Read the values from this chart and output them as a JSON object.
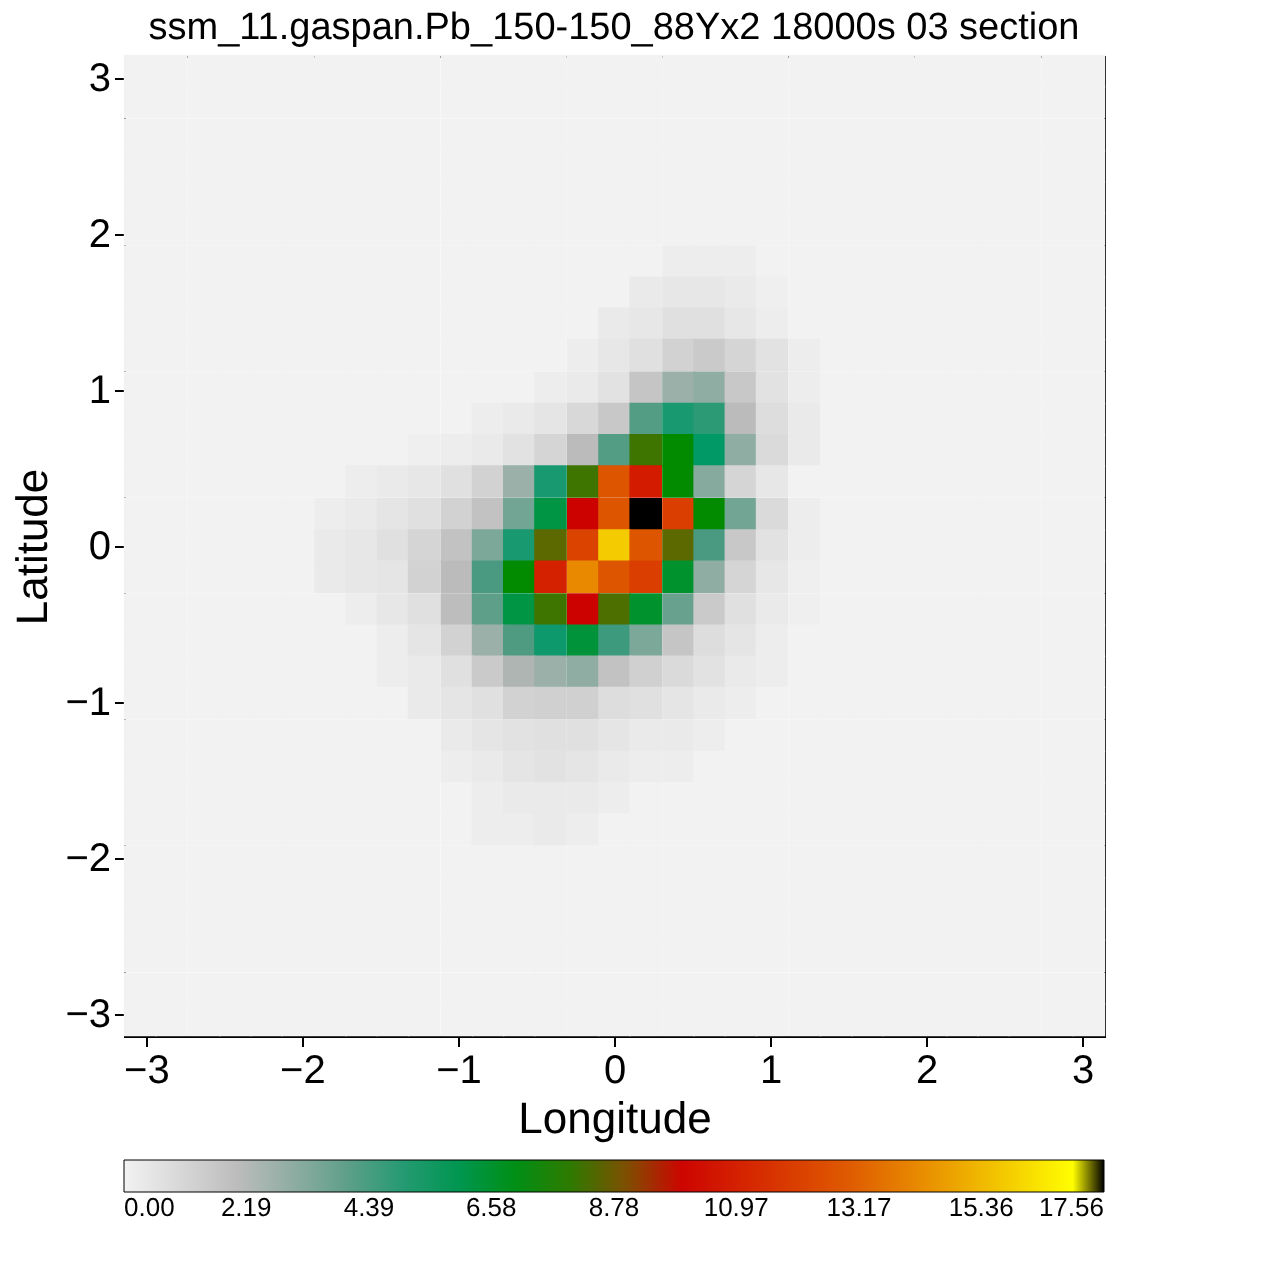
{
  "chart_data": {
    "type": "heatmap",
    "title": "ssm_11.gaspan.Pb_150-150_88Yx2 18000s 03 section",
    "xlabel": "Longitude",
    "ylabel": "Latitude",
    "xlim": [
      -3.14,
      3.14
    ],
    "ylim": [
      -3.14,
      3.14
    ],
    "xticks": [
      -3,
      -2,
      -1,
      0,
      1,
      2,
      3
    ],
    "yticks": [
      -3,
      -2,
      -1,
      0,
      1,
      2,
      3
    ],
    "clim": [
      0,
      17.56
    ],
    "cticks": [
      {
        "value": 0,
        "label": "0.00"
      },
      2.19,
      4.39,
      6.58,
      8.78,
      10.97,
      13.17,
      15.36,
      17.56
    ],
    "x": [
      -3.04,
      -2.84,
      -2.63,
      -2.43,
      -2.23,
      -2.03,
      -1.82,
      -1.62,
      -1.42,
      -1.22,
      -1.01,
      -0.81,
      -0.61,
      -0.41,
      -0.2,
      0,
      0.2,
      0.41,
      0.61,
      0.81,
      1.01,
      1.22,
      1.42,
      1.62,
      1.82,
      2.03,
      2.23,
      2.43,
      2.63,
      2.84,
      3.04
    ],
    "y": [
      3.04,
      2.84,
      2.63,
      2.43,
      2.23,
      2.03,
      1.82,
      1.62,
      1.42,
      1.22,
      1.01,
      0.81,
      0.61,
      0.41,
      0.2,
      0,
      -0.2,
      -0.41,
      -0.61,
      -0.81,
      -1.01,
      -1.22,
      -1.42,
      -1.62,
      -1.82,
      -2.03,
      -2.23,
      -2.43,
      -2.63,
      -2.84,
      -3.04
    ],
    "cells": [
      [
        0,
        0,
        0,
        0,
        0,
        0,
        0,
        0,
        0,
        0,
        0,
        0,
        0,
        0,
        0,
        0,
        0,
        0,
        0,
        0,
        0,
        0,
        0,
        0,
        0,
        0,
        0,
        0,
        0,
        0,
        0
      ],
      [
        0,
        0,
        0,
        0,
        0,
        0,
        0,
        0,
        0,
        0,
        0,
        0,
        0,
        0,
        0,
        0,
        0,
        0,
        0,
        0,
        0,
        0,
        0,
        0,
        0,
        0,
        0,
        0,
        0,
        0,
        0
      ],
      [
        0,
        0,
        0,
        0,
        0,
        0,
        0,
        0,
        0,
        0,
        0,
        0,
        0,
        0,
        0,
        0,
        0,
        0,
        0,
        0,
        0,
        0,
        0,
        0,
        0,
        0,
        0,
        0,
        0,
        0,
        0
      ],
      [
        0,
        0,
        0,
        0,
        0,
        0,
        0,
        0,
        0,
        0,
        0,
        0,
        0,
        0,
        0,
        0,
        0,
        0,
        0,
        0,
        0,
        0,
        0,
        0,
        0,
        0,
        0,
        0,
        0,
        0,
        0
      ],
      [
        0,
        0,
        0,
        0,
        0,
        0,
        0,
        0,
        0,
        0,
        0,
        0,
        0,
        0,
        0,
        0,
        0,
        0,
        0,
        0,
        0,
        0,
        0,
        0,
        0,
        0,
        0,
        0,
        0,
        0,
        0
      ],
      [
        0,
        0,
        0,
        0,
        0,
        0,
        0,
        0,
        0,
        0,
        0,
        0,
        0,
        0,
        0,
        0,
        0,
        0,
        0,
        0,
        0,
        0,
        0,
        0,
        0,
        0,
        0,
        0,
        0,
        0,
        0
      ],
      [
        0,
        0,
        0,
        0,
        0,
        0,
        0,
        0,
        0,
        0,
        0,
        0,
        0,
        0,
        0,
        0,
        0,
        0.2,
        0.2,
        0.2,
        0,
        0,
        0,
        0,
        0,
        0,
        0,
        0,
        0,
        0,
        0
      ],
      [
        0,
        0,
        0,
        0,
        0,
        0,
        0,
        0,
        0,
        0,
        0,
        0,
        0,
        0,
        0,
        0,
        0.3,
        0.4,
        0.4,
        0.3,
        0.1,
        0,
        0,
        0,
        0,
        0,
        0,
        0,
        0,
        0,
        0
      ],
      [
        0,
        0,
        0,
        0,
        0,
        0,
        0,
        0,
        0,
        0,
        0,
        0,
        0,
        0,
        0,
        0.3,
        0.4,
        0.7,
        0.7,
        0.4,
        0.2,
        0,
        0,
        0,
        0,
        0,
        0,
        0,
        0,
        0,
        0
      ],
      [
        0,
        0,
        0,
        0,
        0,
        0,
        0,
        0,
        0,
        0,
        0,
        0,
        0,
        0,
        0.2,
        0.4,
        0.7,
        1.2,
        1.5,
        1.1,
        0.6,
        0.2,
        0,
        0,
        0,
        0,
        0,
        0,
        0,
        0,
        0
      ],
      [
        0,
        0,
        0,
        0,
        0,
        0,
        0,
        0,
        0,
        0,
        0,
        0,
        0,
        0.2,
        0.3,
        0.6,
        1.7,
        2.8,
        3.0,
        1.6,
        0.6,
        0.2,
        0,
        0,
        0,
        0,
        0,
        0,
        0,
        0,
        0
      ],
      [
        0,
        0,
        0,
        0,
        0,
        0,
        0,
        0,
        0,
        0,
        0,
        0.2,
        0.3,
        0.5,
        1.0,
        1.6,
        4.2,
        5.2,
        4.9,
        2.1,
        0.8,
        0.3,
        0,
        0,
        0,
        0,
        0,
        0,
        0,
        0,
        0
      ],
      [
        0,
        0,
        0,
        0,
        0,
        0,
        0,
        0,
        0,
        0.1,
        0.2,
        0.3,
        0.6,
        1.1,
        2.1,
        4.2,
        8.2,
        7.4,
        5.6,
        3.0,
        0.9,
        0.3,
        0,
        0,
        0,
        0,
        0,
        0,
        0,
        0,
        0
      ],
      [
        0,
        0,
        0,
        0,
        0,
        0,
        0,
        0.2,
        0.3,
        0.4,
        0.7,
        1.2,
        2.8,
        5.2,
        8.2,
        12.8,
        10.8,
        7.4,
        3.2,
        1.1,
        0.4,
        0,
        0,
        0,
        0,
        0,
        0,
        0,
        0,
        0,
        0
      ],
      [
        0,
        0,
        0,
        0,
        0,
        0,
        0.2,
        0.3,
        0.5,
        0.7,
        1.2,
        1.8,
        3.6,
        6.2,
        9.9,
        12.8,
        17.56,
        12.0,
        7.4,
        3.6,
        0.9,
        0.2,
        0,
        0,
        0,
        0,
        0,
        0,
        0,
        0,
        0
      ],
      [
        0,
        0,
        0,
        0,
        0,
        0,
        0.3,
        0.4,
        0.7,
        1.1,
        1.8,
        3.4,
        5.2,
        8.6,
        12.2,
        15.8,
        12.8,
        8.6,
        4.4,
        1.6,
        0.6,
        0.2,
        0,
        0,
        0,
        0,
        0,
        0,
        0,
        0,
        0
      ],
      [
        0,
        0,
        0,
        0,
        0,
        0,
        0.3,
        0.4,
        0.5,
        1.2,
        2.1,
        4.4,
        7.4,
        11.0,
        14.2,
        12.8,
        12.0,
        6.6,
        3.0,
        1.1,
        0.4,
        0.1,
        0,
        0,
        0,
        0,
        0,
        0,
        0,
        0,
        0
      ],
      [
        0,
        0,
        0,
        0,
        0,
        0,
        0,
        0.2,
        0.4,
        0.7,
        2.0,
        4.0,
        6.2,
        8.2,
        9.9,
        8.4,
        6.6,
        3.8,
        1.5,
        0.7,
        0.3,
        0.1,
        0,
        0,
        0,
        0,
        0,
        0,
        0,
        0,
        0
      ],
      [
        0,
        0,
        0,
        0,
        0,
        0,
        0,
        0,
        0.2,
        0.5,
        1.2,
        2.8,
        4.3,
        5.4,
        6.4,
        4.6,
        3.4,
        1.7,
        0.8,
        0.5,
        0.2,
        0,
        0,
        0,
        0,
        0,
        0,
        0,
        0,
        0,
        0
      ],
      [
        0,
        0,
        0,
        0,
        0,
        0,
        0,
        0,
        0.2,
        0.3,
        0.7,
        1.5,
        2.4,
        2.8,
        3.0,
        1.8,
        1.3,
        0.9,
        0.6,
        0.3,
        0.2,
        0,
        0,
        0,
        0,
        0,
        0,
        0,
        0,
        0,
        0
      ],
      [
        0,
        0,
        0,
        0,
        0,
        0,
        0,
        0,
        0,
        0.3,
        0.5,
        0.7,
        1.2,
        1.3,
        1.3,
        0.8,
        0.7,
        0.5,
        0.3,
        0.2,
        0,
        0,
        0,
        0,
        0,
        0,
        0,
        0,
        0,
        0,
        0
      ],
      [
        0,
        0,
        0,
        0,
        0,
        0,
        0,
        0,
        0,
        0,
        0.3,
        0.5,
        0.6,
        0.7,
        0.7,
        0.5,
        0.3,
        0.3,
        0.2,
        0,
        0,
        0,
        0,
        0,
        0,
        0,
        0,
        0,
        0,
        0,
        0
      ],
      [
        0,
        0,
        0,
        0,
        0,
        0,
        0,
        0,
        0,
        0,
        0.2,
        0.3,
        0.5,
        0.6,
        0.5,
        0.3,
        0.2,
        0.2,
        0,
        0,
        0,
        0,
        0,
        0,
        0,
        0,
        0,
        0,
        0,
        0,
        0
      ],
      [
        0,
        0,
        0,
        0,
        0,
        0,
        0,
        0,
        0,
        0,
        0,
        0.2,
        0.3,
        0.3,
        0.3,
        0.2,
        0,
        0,
        0,
        0,
        0,
        0,
        0,
        0,
        0,
        0,
        0,
        0,
        0,
        0,
        0
      ],
      [
        0,
        0,
        0,
        0,
        0,
        0,
        0,
        0,
        0,
        0,
        0,
        0.2,
        0.2,
        0.3,
        0.2,
        0,
        0,
        0,
        0,
        0,
        0,
        0,
        0,
        0,
        0,
        0,
        0,
        0,
        0,
        0,
        0
      ],
      [
        0,
        0,
        0,
        0,
        0,
        0,
        0,
        0,
        0,
        0,
        0,
        0,
        0,
        0,
        0,
        0,
        0,
        0,
        0,
        0,
        0,
        0,
        0,
        0,
        0,
        0,
        0,
        0,
        0,
        0,
        0
      ],
      [
        0,
        0,
        0,
        0,
        0,
        0,
        0,
        0,
        0,
        0,
        0,
        0,
        0,
        0,
        0,
        0,
        0,
        0,
        0,
        0,
        0,
        0,
        0,
        0,
        0,
        0,
        0,
        0,
        0,
        0,
        0
      ],
      [
        0,
        0,
        0,
        0,
        0,
        0,
        0,
        0,
        0,
        0,
        0,
        0,
        0,
        0,
        0,
        0,
        0,
        0,
        0,
        0,
        0,
        0,
        0,
        0,
        0,
        0,
        0,
        0,
        0,
        0,
        0
      ],
      [
        0,
        0,
        0,
        0,
        0,
        0,
        0,
        0,
        0,
        0,
        0,
        0,
        0,
        0,
        0,
        0,
        0,
        0,
        0,
        0,
        0,
        0,
        0,
        0,
        0,
        0,
        0,
        0,
        0,
        0,
        0
      ],
      [
        0,
        0,
        0,
        0,
        0,
        0,
        0,
        0,
        0,
        0,
        0,
        0,
        0,
        0,
        0,
        0,
        0,
        0,
        0,
        0,
        0,
        0,
        0,
        0,
        0,
        0,
        0,
        0,
        0,
        0,
        0
      ],
      [
        0,
        0,
        0,
        0,
        0,
        0,
        0,
        0,
        0,
        0,
        0,
        0,
        0,
        0,
        0,
        0,
        0,
        0,
        0,
        0,
        0,
        0,
        0,
        0,
        0,
        0,
        0,
        0,
        0,
        0,
        0
      ]
    ]
  }
}
